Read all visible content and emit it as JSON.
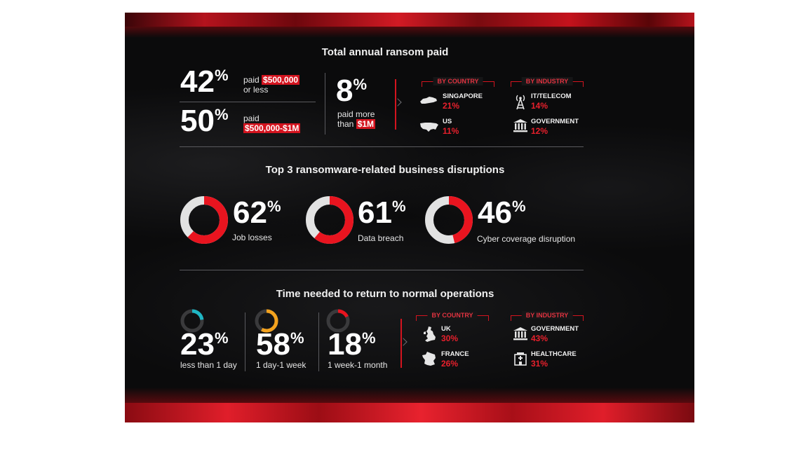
{
  "chart_data": [
    {
      "type": "table",
      "title": "Total annual ransom paid",
      "stats": [
        {
          "value": "42",
          "unit": "%",
          "label_before": "paid",
          "highlight": "$500,000",
          "label_after": "or less"
        },
        {
          "value": "50",
          "unit": "%",
          "label_before": "paid",
          "highlight": "$500,000-$1M"
        },
        {
          "value": "8",
          "unit": "%",
          "label_before": "paid more than",
          "highlight": "$1M"
        }
      ],
      "by_country": {
        "header": "BY COUNTRY",
        "items": [
          {
            "name": "SINGAPORE",
            "value": "21%",
            "icon": "singapore-map-icon"
          },
          {
            "name": "US",
            "value": "11%",
            "icon": "us-map-icon"
          }
        ]
      },
      "by_industry": {
        "header": "BY INDUSTRY",
        "items": [
          {
            "name": "IT/TELECOM",
            "value": "14%",
            "icon": "antenna-icon"
          },
          {
            "name": "GOVERNMENT",
            "value": "12%",
            "icon": "government-building-icon"
          }
        ]
      }
    },
    {
      "type": "pie",
      "title": "Top 3 ransomware-related business disruptions",
      "items": [
        {
          "value": 62,
          "unit": "%",
          "label": "Job losses"
        },
        {
          "value": 61,
          "unit": "%",
          "label": "Data breach"
        },
        {
          "value": 46,
          "unit": "%",
          "label": "Cyber coverage disruption"
        }
      ],
      "colors": {
        "fill": "#e8141f",
        "track": "#e2e2e2"
      }
    },
    {
      "type": "pie",
      "title": "Time needed to return to normal operations",
      "items": [
        {
          "value": 23,
          "unit": "%",
          "label": "less than 1 day",
          "color": "#1fb6c4"
        },
        {
          "value": 58,
          "unit": "%",
          "label": "1 day-1 week",
          "color": "#f3a21e"
        },
        {
          "value": 18,
          "unit": "%",
          "label": "1 week-1 month",
          "color": "#e8141f"
        }
      ],
      "track_color": "#3a3a3c",
      "by_country": {
        "header": "BY COUNTRY",
        "items": [
          {
            "name": "UK",
            "value": "30%",
            "icon": "uk-map-icon"
          },
          {
            "name": "FRANCE",
            "value": "26%",
            "icon": "france-map-icon"
          }
        ]
      },
      "by_industry": {
        "header": "BY INDUSTRY",
        "items": [
          {
            "name": "GOVERNMENT",
            "value": "43%",
            "icon": "government-building-icon"
          },
          {
            "name": "HEALTHCARE",
            "value": "31%",
            "icon": "hospital-icon"
          }
        ]
      }
    }
  ]
}
